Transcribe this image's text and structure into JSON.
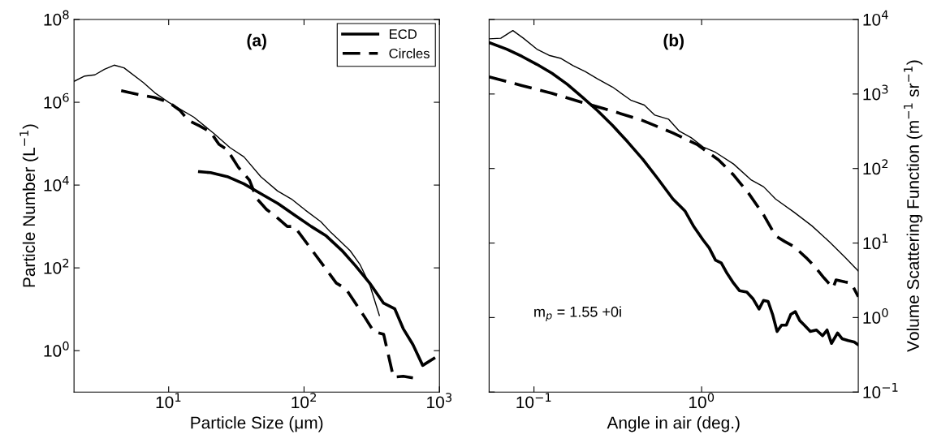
{
  "chart_data": [
    {
      "type": "line",
      "title": "(a)",
      "xlabel": "Particle Size (μm)",
      "ylabel": "Particle Number (L$^{−1}$)",
      "log": "xy",
      "legend": "top right",
      "grid": false,
      "xlim": [
        2,
        1000
      ],
      "xticks": [
        {
          "value": 10,
          "label": "10$^{1}$"
        },
        {
          "value": 100,
          "label": "10$^{2}$"
        },
        {
          "value": 1000,
          "label": "10$^{3}$"
        }
      ],
      "ylim": [
        0.1,
        100000000
      ],
      "yticks": [
        {
          "value": 1,
          "label": "10$^{0}$"
        },
        {
          "value": 100,
          "label": "10$^{2}$"
        },
        {
          "value": 10000,
          "label": "10$^{4}$"
        },
        {
          "value": 1000000,
          "label": "10$^{6}$"
        },
        {
          "value": 100000000,
          "label": "10$^{8}$"
        }
      ],
      "series": [
        {
          "color": "#000000",
          "line_style": "solid",
          "x": [
            2.0,
            2.4,
            2.85,
            3.36,
            3.96,
            4.68,
            6.5,
            7.9,
            10,
            12.1,
            15.3,
            21.4,
            28.4,
            36,
            47.9,
            63.7,
            80.7,
            102,
            133,
            157,
            185,
            219,
            258,
            305,
            360
          ],
          "values": [
            3200000,
            4300000,
            4600000,
            6300000,
            7900000,
            6800000,
            3000000,
            1700000,
            1000000,
            690000,
            440000,
            180000,
            80000,
            48000,
            16000,
            7200,
            4600,
            2500,
            1300,
            730,
            440,
            260,
            123,
            40,
            7.1
          ]
        },
        {
          "name": "ECD",
          "color": "#000000",
          "line_style": "solid",
          "x": [
            16.9,
            20.4,
            27.1,
            36,
            48,
            64,
            85,
            113,
            146,
            190,
            240,
            305,
            387,
            468,
            540,
            637,
            752,
            910
          ],
          "values": [
            21000,
            20000,
            16000,
            10700,
            6200,
            3600,
            1900,
            1000,
            590,
            265,
            112,
            43,
            14,
            10.2,
            3.4,
            1.4,
            0.44,
            0.65
          ]
        },
        {
          "name": "Circles",
          "color": "#000000",
          "line_style": "dashed",
          "x": [
            4.46,
            6.2,
            7.9,
            10,
            12.1,
            13.9,
            16.9,
            20.4,
            23.5,
            27.1,
            32.7,
            39.6,
            44.6,
            52.7,
            63.7,
            75.2,
            84.7,
            107,
            143,
            173,
            204,
            277,
            327,
            387,
            457,
            540,
            637
          ],
          "values": [
            1900000,
            1500000,
            1300000,
            1000000,
            640000,
            370000,
            270000,
            190000,
            97000,
            71000,
            27000,
            13000,
            4800,
            2600,
            1600,
            1000,
            1000,
            360,
            100,
            43,
            31,
            6.9,
            2.9,
            2.5,
            0.23,
            0.24,
            0.22
          ]
        }
      ]
    },
    {
      "type": "line",
      "title": "(b)",
      "xlabel": "Angle in air (deg.)",
      "ylabel": "Volume Scattering Function (m$^{−1}$ sr$^{−1}$)",
      "log": "xy",
      "grid": false,
      "annotations": [
        "m$_{p}$ = 1.55 +0i"
      ],
      "xlim": [
        0.054,
        8.6
      ],
      "xticks": [
        {
          "value": 0.1,
          "label": "10$^{−1}$"
        },
        {
          "value": 1,
          "label": "10$^{0}$"
        }
      ],
      "ylim": [
        0.1,
        10000
      ],
      "yticks": [
        {
          "value": 0.1,
          "label": "10$^{−1}$"
        },
        {
          "value": 1,
          "label": "10$^{0}$"
        },
        {
          "value": 10,
          "label": "10$^{1}$"
        },
        {
          "value": 100,
          "label": "10$^{2}$"
        },
        {
          "value": 1000,
          "label": "10$^{3}$"
        },
        {
          "value": 10000,
          "label": "10$^{4}$"
        }
      ],
      "series": [
        {
          "color": "#000000",
          "line_style": "solid",
          "x": [
            0.054,
            0.0634,
            0.0748,
            0.0865,
            0.104,
            0.123,
            0.145,
            0.171,
            0.202,
            0.239,
            0.294,
            0.377,
            0.455,
            0.526,
            0.634,
            0.733,
            0.865,
            1.02,
            1.21,
            1.55,
            1.98,
            2.34,
            2.76,
            3.55,
            4.55,
            5.83,
            7.18,
            8.6
          ],
          "values": [
            5500,
            5600,
            7100,
            5600,
            4000,
            3300,
            3000,
            2400,
            2000,
            1600,
            1240,
            830,
            710,
            520,
            460,
            320,
            260,
            195,
            165,
            115,
            70,
            57,
            39,
            26,
            17,
            10.2,
            6.4,
            4.2
          ]
        },
        {
          "color": "#000000",
          "line_style": "solid",
          "x": [
            0.054,
            0.0688,
            0.0847,
            0.104,
            0.128,
            0.158,
            0.194,
            0.239,
            0.294,
            0.362,
            0.446,
            0.548,
            0.674,
            0.795,
            0.9,
            1.02,
            1.11,
            1.21,
            1.31,
            1.42,
            1.55,
            1.68,
            1.86,
            2.02,
            2.2,
            2.34,
            2.49,
            2.65,
            2.82,
            3.0,
            3.2,
            3.4,
            3.62,
            3.85,
            4.1,
            4.45,
            4.84,
            5.26,
            5.6,
            5.95,
            6.47,
            6.88,
            7.48,
            8.13,
            8.6
          ],
          "values": [
            4900,
            4000,
            3200,
            2500,
            1900,
            1350,
            910,
            600,
            380,
            228,
            133,
            73,
            39,
            27,
            16.5,
            11,
            8.6,
            5.9,
            5.4,
            3.9,
            2.9,
            2.3,
            2.2,
            1.8,
            1.3,
            1.7,
            1.65,
            1.1,
            0.65,
            0.79,
            0.79,
            1.1,
            1.2,
            0.91,
            0.79,
            0.65,
            0.68,
            0.57,
            0.68,
            0.45,
            0.62,
            0.52,
            0.49,
            0.47,
            0.43
          ]
        },
        {
          "color": "#000000",
          "line_style": "dashed",
          "x": [
            0.054,
            0.0847,
            0.128,
            0.194,
            0.294,
            0.446,
            0.674,
            0.94,
            1.26,
            1.55,
            1.9,
            2.34,
            2.76,
            3.13,
            3.55,
            4.19,
            4.74,
            5.37,
            6.08,
            6.34,
            7.18,
            7.8,
            8.6
          ],
          "values": [
            1700,
            1300,
            1020,
            770,
            590,
            440,
            300,
            210,
            131,
            82,
            47,
            24,
            12.5,
            10.5,
            9.0,
            6.4,
            4.8,
            3.4,
            2.5,
            3.2,
            3.0,
            2.9,
            1.9
          ]
        }
      ]
    }
  ]
}
